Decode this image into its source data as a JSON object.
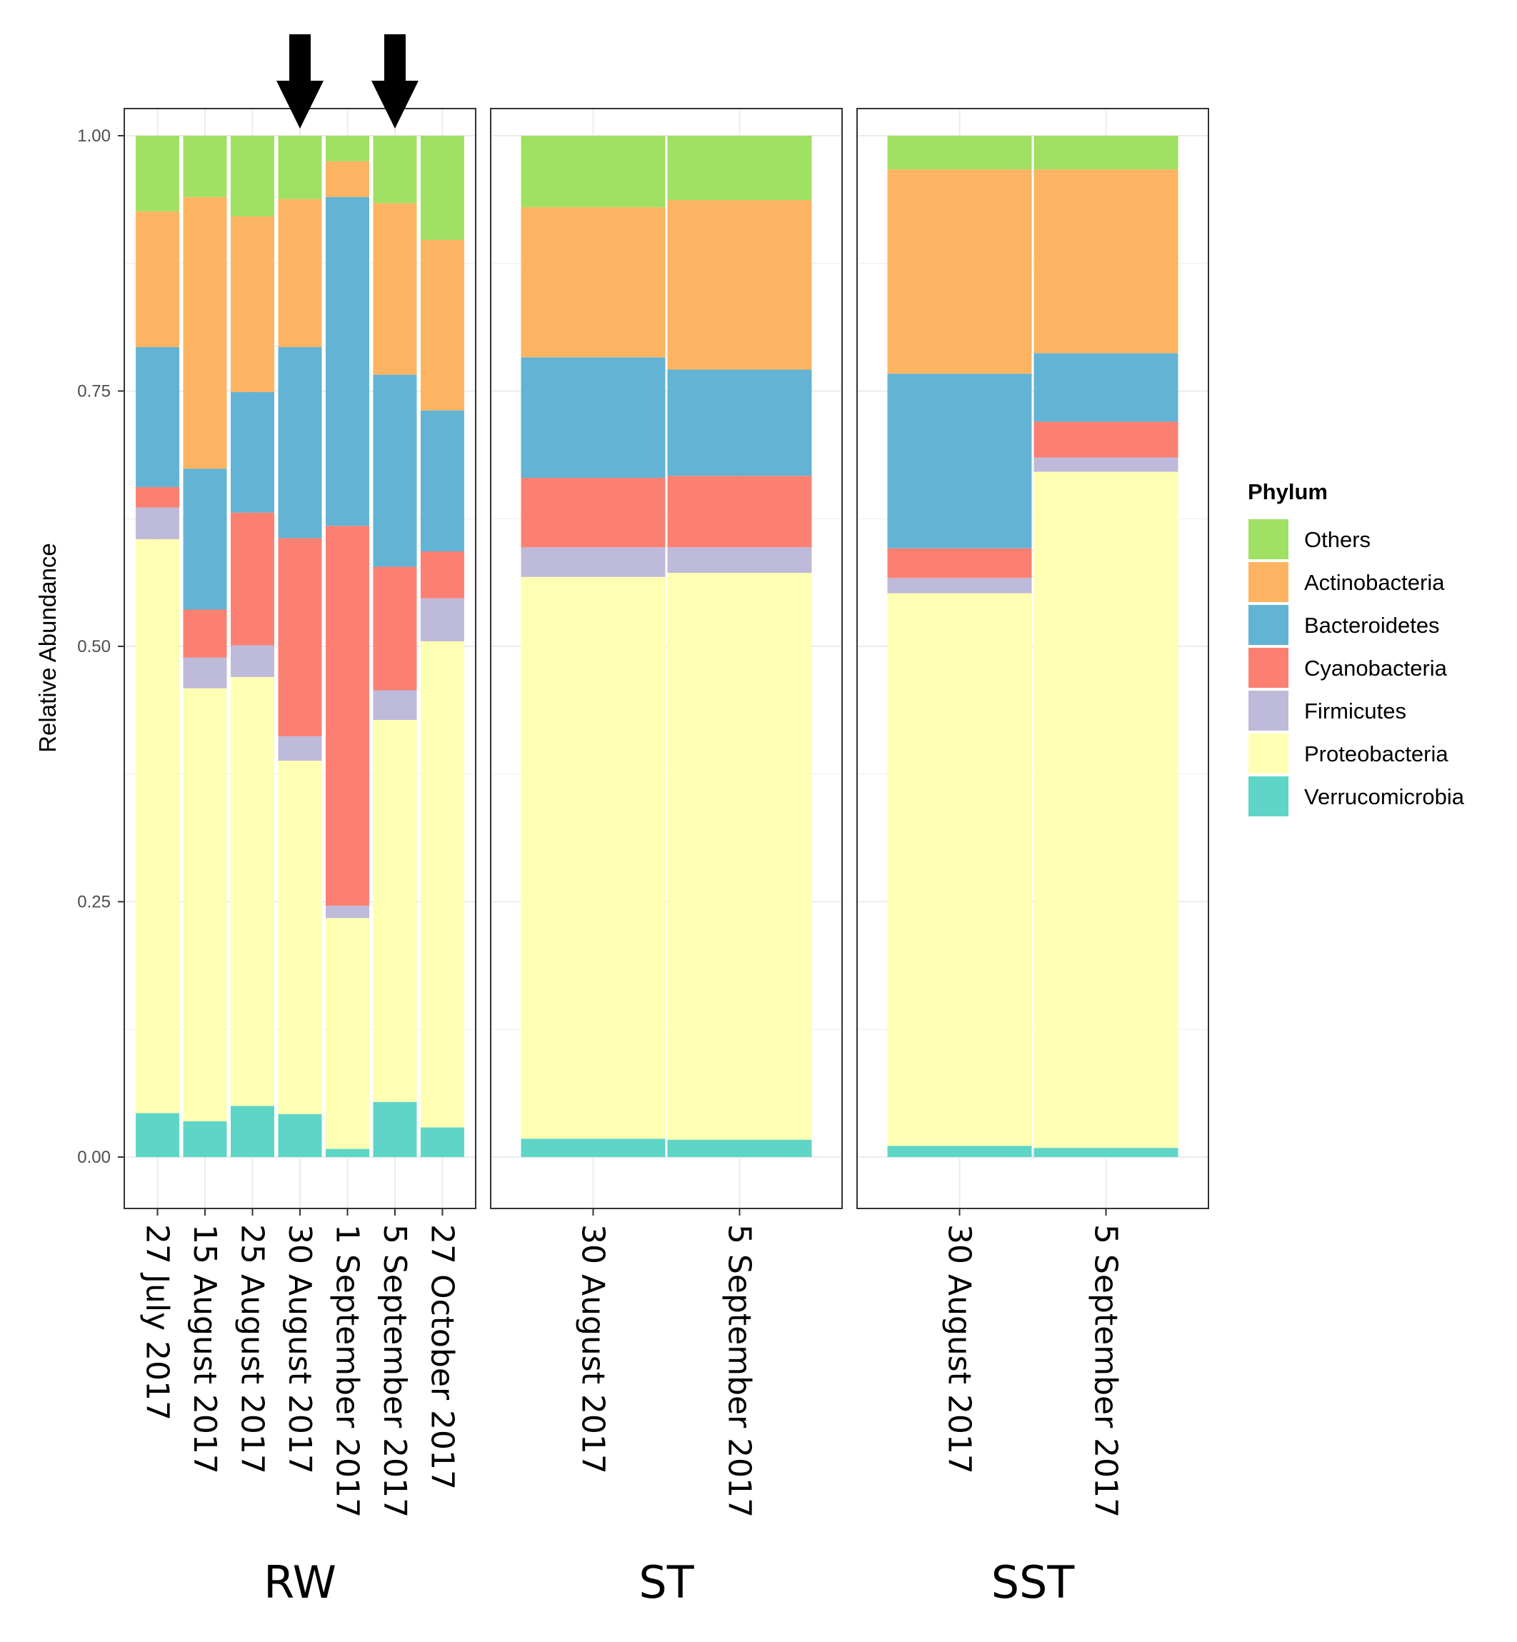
{
  "chart_data": {
    "type": "bar",
    "stacked": true,
    "ylabel": "Relative Abundance",
    "ylim": [
      0,
      1
    ],
    "yticks": [
      "0.00",
      "0.25",
      "0.50",
      "0.75",
      "1.00"
    ],
    "legend": {
      "title": "Phylum",
      "position": "right",
      "entries": [
        "Others",
        "Actinobacteria",
        "Bacteroidetes",
        "Cyanobacteria",
        "Firmicutes",
        "Proteobacteria",
        "Verrucomicrobia"
      ]
    },
    "colors": {
      "Others": "#a0e063",
      "Actinobacteria": "#fdb462",
      "Bacteroidetes": "#63b3d5",
      "Cyanobacteria": "#fb8072",
      "Firmicutes": "#bebada",
      "Proteobacteria": "#ffffb3",
      "Verrucomicrobia": "#5fd5c8"
    },
    "stack_order_bottom_to_top": [
      "Verrucomicrobia",
      "Proteobacteria",
      "Firmicutes",
      "Cyanobacteria",
      "Bacteroidetes",
      "Actinobacteria",
      "Others"
    ],
    "panels": [
      {
        "label": "RW",
        "categories": [
          "27 July 2017",
          "15 August 2017",
          "25 August 2017",
          "30 August 2017",
          "1 September 2017",
          "5 September 2017",
          "27 October 2017"
        ],
        "arrows_above": [
          "30 August 2017",
          "5 September 2017"
        ],
        "series": [
          {
            "name": "Verrucomicrobia",
            "values": [
              0.043,
              0.035,
              0.05,
              0.042,
              0.008,
              0.054,
              0.029
            ]
          },
          {
            "name": "Proteobacteria",
            "values": [
              0.562,
              0.424,
              0.42,
              0.346,
              0.226,
              0.374,
              0.476
            ]
          },
          {
            "name": "Firmicutes",
            "values": [
              0.031,
              0.03,
              0.031,
              0.024,
              0.012,
              0.029,
              0.042
            ]
          },
          {
            "name": "Cyanobacteria",
            "values": [
              0.02,
              0.047,
              0.13,
              0.194,
              0.372,
              0.121,
              0.046
            ]
          },
          {
            "name": "Bacteroidetes",
            "values": [
              0.137,
              0.138,
              0.118,
              0.187,
              0.322,
              0.188,
              0.138
            ]
          },
          {
            "name": "Actinobacteria",
            "values": [
              0.133,
              0.266,
              0.172,
              0.145,
              0.035,
              0.168,
              0.167
            ]
          },
          {
            "name": "Others",
            "values": [
              0.074,
              0.06,
              0.079,
              0.062,
              0.025,
              0.066,
              0.102
            ]
          }
        ]
      },
      {
        "label": "ST",
        "categories": [
          "30 August 2017",
          "5 September 2017"
        ],
        "series": [
          {
            "name": "Verrucomicrobia",
            "values": [
              0.018,
              0.017
            ]
          },
          {
            "name": "Proteobacteria",
            "values": [
              0.55,
              0.555
            ]
          },
          {
            "name": "Firmicutes",
            "values": [
              0.029,
              0.025
            ]
          },
          {
            "name": "Cyanobacteria",
            "values": [
              0.068,
              0.07
            ]
          },
          {
            "name": "Bacteroidetes",
            "values": [
              0.118,
              0.104
            ]
          },
          {
            "name": "Actinobacteria",
            "values": [
              0.147,
              0.166
            ]
          },
          {
            "name": "Others",
            "values": [
              0.07,
              0.063
            ]
          }
        ]
      },
      {
        "label": "SST",
        "categories": [
          "30 August 2017",
          "5 September 2017"
        ],
        "series": [
          {
            "name": "Verrucomicrobia",
            "values": [
              0.011,
              0.009
            ]
          },
          {
            "name": "Proteobacteria",
            "values": [
              0.541,
              0.662
            ]
          },
          {
            "name": "Firmicutes",
            "values": [
              0.015,
              0.014
            ]
          },
          {
            "name": "Cyanobacteria",
            "values": [
              0.029,
              0.035
            ]
          },
          {
            "name": "Bacteroidetes",
            "values": [
              0.171,
              0.067
            ]
          },
          {
            "name": "Actinobacteria",
            "values": [
              0.2,
              0.18
            ]
          },
          {
            "name": "Others",
            "values": [
              0.033,
              0.033
            ]
          }
        ]
      }
    ]
  }
}
